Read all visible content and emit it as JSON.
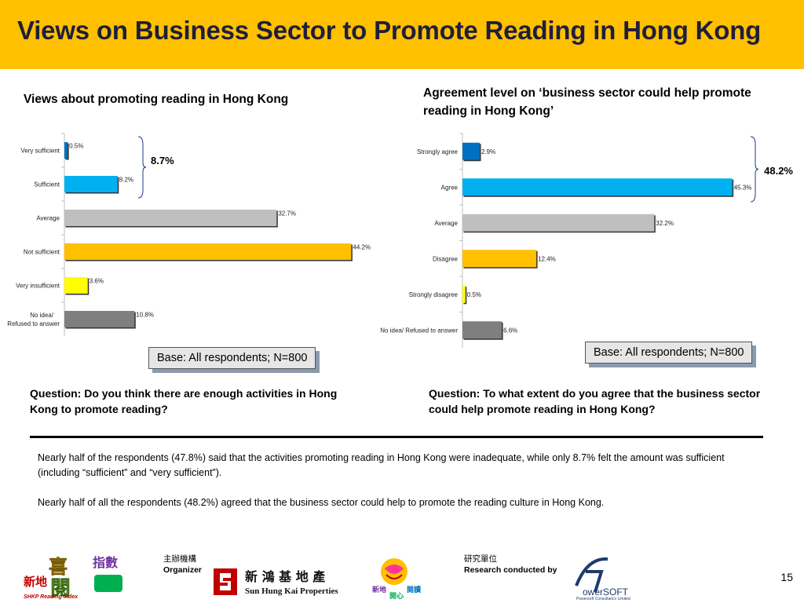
{
  "header": {
    "title": "Views on Business Sector to Promote Reading in Hong Kong"
  },
  "chart_data": [
    {
      "type": "bar",
      "orientation": "horizontal",
      "title": "Views about promoting reading in Hong Kong",
      "categories": [
        "Very sufficient",
        "Sufficient",
        "Average",
        "Not sufficient",
        "Very insufficient",
        "No idea/ Refused to answer"
      ],
      "values": [
        0.5,
        8.2,
        32.7,
        44.2,
        3.6,
        10.8
      ],
      "value_labels": [
        "0.5%",
        "8.2%",
        "32.7%",
        "44.2%",
        "3.6%",
        "10.8%"
      ],
      "colors": [
        "#0070c0",
        "#00b0f0",
        "#bfbfbf",
        "#ffc000",
        "#ffff00",
        "#7f7f7f"
      ],
      "unit": "%",
      "xlim": [
        0,
        45
      ],
      "bracket": {
        "label": "8.7%",
        "spans": [
          "Very sufficient",
          "Sufficient"
        ]
      },
      "legend": "none",
      "grid": false
    },
    {
      "type": "bar",
      "orientation": "horizontal",
      "title": "Agreement level on ‘business sector could help promote reading in Hong Kong’",
      "categories": [
        "Strongly agree",
        "Agree",
        "Average",
        "Disagree",
        "Strongly disagree",
        "No idea/ Refused to answer"
      ],
      "values": [
        2.9,
        45.3,
        32.2,
        12.4,
        0.5,
        6.6
      ],
      "value_labels": [
        "2.9%",
        "45.3%",
        "32.2%",
        "12.4%",
        "0.5%",
        "6.6%"
      ],
      "colors": [
        "#0070c0",
        "#00b0f0",
        "#bfbfbf",
        "#ffc000",
        "#ffff00",
        "#7f7f7f"
      ],
      "unit": "%",
      "xlim": [
        0,
        46
      ],
      "bracket": {
        "label": "48.2%",
        "spans": [
          "Strongly agree",
          "Agree"
        ]
      },
      "legend": "none",
      "grid": false
    }
  ],
  "left": {
    "base": "Base: All respondents; N=800",
    "question": "Question: Do you think there are enough activities in Hong Kong to promote reading?"
  },
  "right": {
    "base": "Base: All respondents; N=800",
    "question": "Question: To what extent do you agree that the business sector could help promote reading in Hong Kong?"
  },
  "summary": [
    "Nearly half of the respondents (47.8%) said that the activities promoting reading in Hong Kong were inadequate, while only 8.7% felt the amount was sufficient (including “sufficient” and “very sufficient”).",
    "Nearly half of all the respondents (48.2%) agreed that the business sector could help to promote the reading culture in Hong Kong."
  ],
  "footer": {
    "organizer_zh": "主辦機構",
    "organizer_en": "Organizer",
    "research_zh": "研究單位",
    "research_en": "Research conducted by",
    "shkp_logo_text_zh": "新 鴻 基 地 產",
    "shkp_logo_text_en": "Sun Hung Kai Properties",
    "reading_index_logo_zh": "新地喜閱指數",
    "reading_index_logo_en": "SHKP Reading Index",
    "open_reading_logo_zh": "新地開心閱讀",
    "powersoft_logo_en": "PowerSOFT",
    "powersoft_logo_sub": "Powersoft Consultancy Limited",
    "page_number": "15"
  }
}
